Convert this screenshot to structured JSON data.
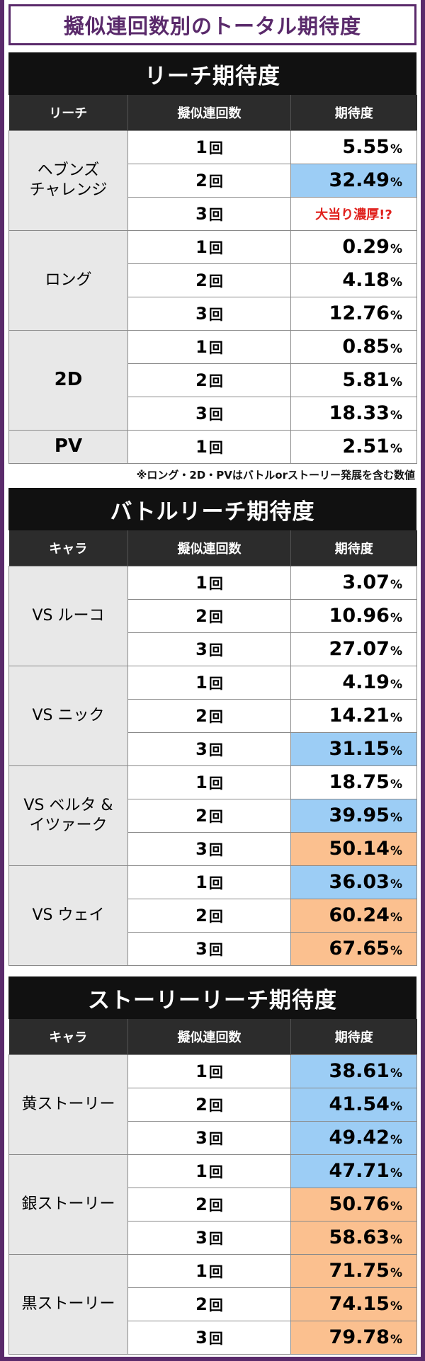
{
  "title": "擬似連回数別のトータル期待度",
  "count_suffix": "回",
  "percent_sign": "%",
  "sections": [
    {
      "title": "リーチ期待度",
      "headers": [
        "リーチ",
        "擬似連回数",
        "期待度"
      ],
      "groups": [
        {
          "label": "ヘブンズ\nチャレンジ",
          "rows": [
            {
              "count": "1",
              "value": "5.55",
              "highlight": "none"
            },
            {
              "count": "2",
              "value": "32.49",
              "highlight": "blue"
            },
            {
              "count": "3",
              "value": "大当り濃厚!?",
              "highlight": "red-text"
            }
          ]
        },
        {
          "label": "ロング",
          "rows": [
            {
              "count": "1",
              "value": "0.29",
              "highlight": "none"
            },
            {
              "count": "2",
              "value": "4.18",
              "highlight": "none"
            },
            {
              "count": "3",
              "value": "12.76",
              "highlight": "none"
            }
          ]
        },
        {
          "label": "2D",
          "bold": true,
          "rows": [
            {
              "count": "1",
              "value": "0.85",
              "highlight": "none"
            },
            {
              "count": "2",
              "value": "5.81",
              "highlight": "none"
            },
            {
              "count": "3",
              "value": "18.33",
              "highlight": "none"
            }
          ]
        },
        {
          "label": "PV",
          "bold": true,
          "rows": [
            {
              "count": "1",
              "value": "2.51",
              "highlight": "none"
            }
          ]
        }
      ],
      "note": "※ロング・2D・PVはバトルorストーリー発展を含む数値"
    },
    {
      "title": "バトルリーチ期待度",
      "headers": [
        "キャラ",
        "擬似連回数",
        "期待度"
      ],
      "groups": [
        {
          "label": "VS ルーコ",
          "rows": [
            {
              "count": "1",
              "value": "3.07",
              "highlight": "none"
            },
            {
              "count": "2",
              "value": "10.96",
              "highlight": "none"
            },
            {
              "count": "3",
              "value": "27.07",
              "highlight": "none"
            }
          ]
        },
        {
          "label": "VS ニック",
          "rows": [
            {
              "count": "1",
              "value": "4.19",
              "highlight": "none"
            },
            {
              "count": "2",
              "value": "14.21",
              "highlight": "none"
            },
            {
              "count": "3",
              "value": "31.15",
              "highlight": "blue"
            }
          ]
        },
        {
          "label": "VS ベルタ &\nイツァーク",
          "rows": [
            {
              "count": "1",
              "value": "18.75",
              "highlight": "none"
            },
            {
              "count": "2",
              "value": "39.95",
              "highlight": "blue"
            },
            {
              "count": "3",
              "value": "50.14",
              "highlight": "orange"
            }
          ]
        },
        {
          "label": "VS ウェイ",
          "rows": [
            {
              "count": "1",
              "value": "36.03",
              "highlight": "blue"
            },
            {
              "count": "2",
              "value": "60.24",
              "highlight": "orange"
            },
            {
              "count": "3",
              "value": "67.65",
              "highlight": "orange"
            }
          ]
        }
      ]
    },
    {
      "title": "ストーリーリーチ期待度",
      "headers": [
        "キャラ",
        "擬似連回数",
        "期待度"
      ],
      "groups": [
        {
          "label": "黄ストーリー",
          "rows": [
            {
              "count": "1",
              "value": "38.61",
              "highlight": "blue"
            },
            {
              "count": "2",
              "value": "41.54",
              "highlight": "blue"
            },
            {
              "count": "3",
              "value": "49.42",
              "highlight": "blue"
            }
          ]
        },
        {
          "label": "銀ストーリー",
          "rows": [
            {
              "count": "1",
              "value": "47.71",
              "highlight": "blue"
            },
            {
              "count": "2",
              "value": "50.76",
              "highlight": "orange"
            },
            {
              "count": "3",
              "value": "58.63",
              "highlight": "orange"
            }
          ]
        },
        {
          "label": "黒ストーリー",
          "rows": [
            {
              "count": "1",
              "value": "71.75",
              "highlight": "orange"
            },
            {
              "count": "2",
              "value": "74.15",
              "highlight": "orange"
            },
            {
              "count": "3",
              "value": "79.78",
              "highlight": "orange"
            }
          ]
        }
      ]
    }
  ],
  "colors": {
    "frame": "#5a2a6b",
    "blue": "#9ccdf5",
    "orange": "#fbc08f",
    "red": "#e0201c"
  }
}
